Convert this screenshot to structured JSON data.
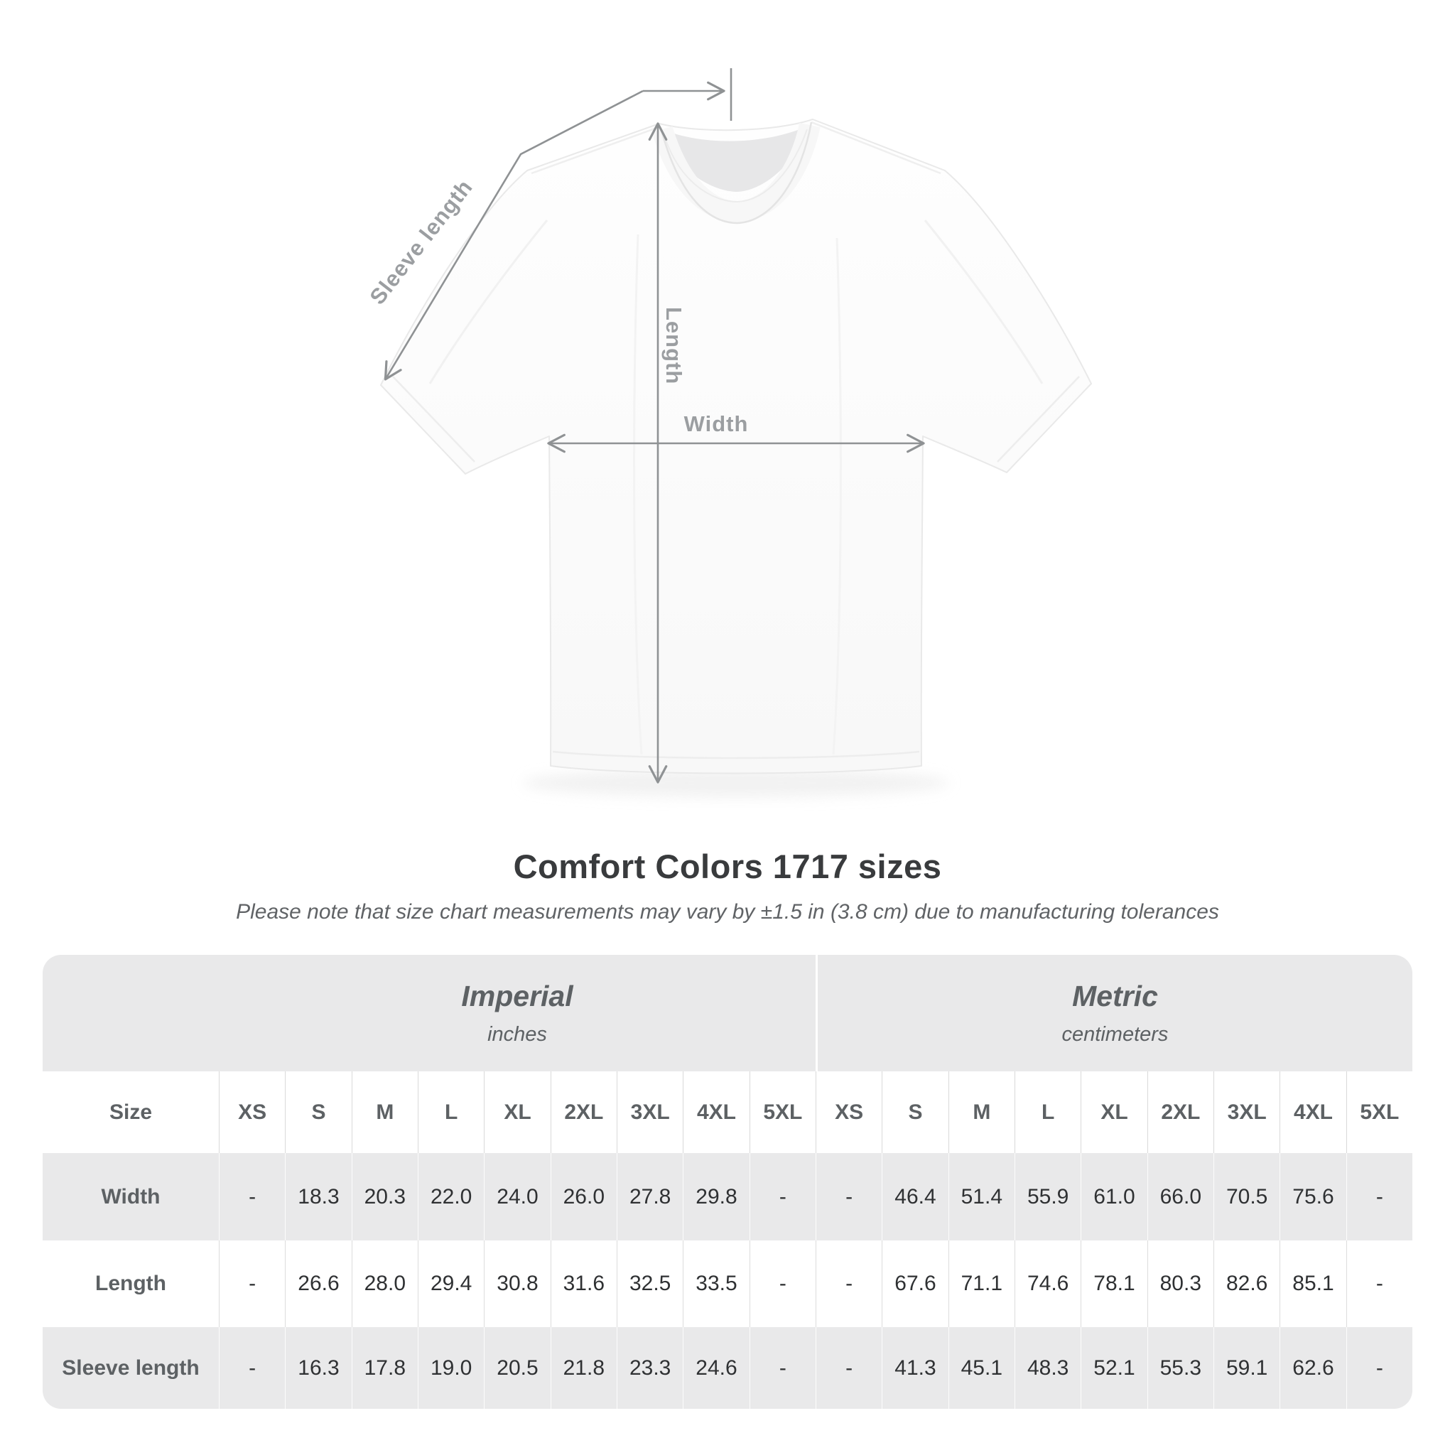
{
  "diagram": {
    "sleeve_length_label": "Sleeve length",
    "length_label": "Length",
    "width_label": "Width"
  },
  "heading": {
    "title": "Comfort Colors 1717 sizes",
    "subtitle": "Please note that size chart measurements may vary by ±1.5 in (3.8 cm) due to manufacturing tolerances"
  },
  "colors": {
    "table_bg": "#e9e9ea",
    "row_white": "#ffffff",
    "header_text": "#5d6164",
    "value_text": "#2f3133",
    "annotation_line": "#8f9294",
    "annotation_text": "#9b9ea1",
    "title_text": "#393b3d"
  },
  "chart_data": {
    "type": "table",
    "title": "Comfort Colors 1717 sizes",
    "note": "Please note that size chart measurements may vary by ±1.5 in (3.8 cm) due to manufacturing tolerances",
    "corner_label": "Size",
    "sections": [
      {
        "name": "Imperial",
        "unit": "inches"
      },
      {
        "name": "Metric",
        "unit": "centimeters"
      }
    ],
    "columns": [
      "XS",
      "S",
      "M",
      "L",
      "XL",
      "2XL",
      "3XL",
      "4XL",
      "5XL"
    ],
    "rows": [
      {
        "label": "Width",
        "values": [
          "-",
          "18.3",
          "20.3",
          "22.0",
          "24.0",
          "26.0",
          "27.8",
          "29.8",
          "-",
          "-",
          "46.4",
          "51.4",
          "55.9",
          "61.0",
          "66.0",
          "70.5",
          "75.6",
          "-"
        ]
      },
      {
        "label": "Length",
        "values": [
          "-",
          "26.6",
          "28.0",
          "29.4",
          "30.8",
          "31.6",
          "32.5",
          "33.5",
          "-",
          "-",
          "67.6",
          "71.1",
          "74.6",
          "78.1",
          "80.3",
          "82.6",
          "85.1",
          "-"
        ]
      },
      {
        "label": "Sleeve length",
        "values": [
          "-",
          "16.3",
          "17.8",
          "19.0",
          "20.5",
          "21.8",
          "23.3",
          "24.6",
          "-",
          "-",
          "41.3",
          "45.1",
          "48.3",
          "52.1",
          "55.3",
          "59.1",
          "62.6",
          "-"
        ]
      }
    ]
  }
}
